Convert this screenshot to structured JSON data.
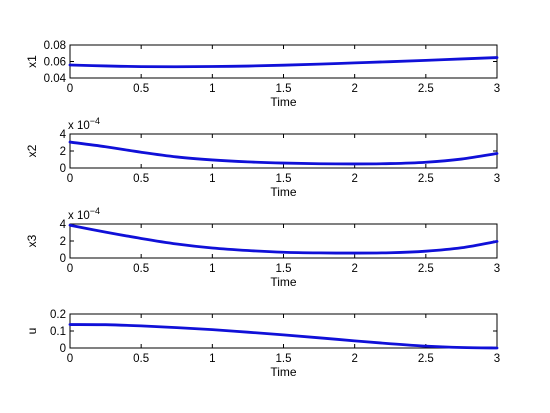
{
  "chart_data": [
    {
      "type": "line",
      "xlabel": "Time",
      "ylabel": "x1",
      "xlim": [
        0,
        3
      ],
      "ylim": [
        0.04,
        0.08
      ],
      "xticks": [
        "0",
        "0.5",
        "1",
        "1.5",
        "2",
        "2.5",
        "3"
      ],
      "yticks": [
        "0.04",
        "0.06",
        "0.08"
      ],
      "ytick_values": [
        0.04,
        0.06,
        0.08
      ],
      "multiplier": "",
      "color": "#1010d8",
      "x": [
        0,
        0.25,
        0.5,
        0.75,
        1,
        1.25,
        1.5,
        1.75,
        2,
        2.25,
        2.5,
        2.75,
        3
      ],
      "y": [
        0.0558,
        0.0546,
        0.0538,
        0.0536,
        0.0539,
        0.0545,
        0.0555,
        0.0568,
        0.0583,
        0.0598,
        0.0614,
        0.0631,
        0.0648
      ]
    },
    {
      "type": "line",
      "xlabel": "Time",
      "ylabel": "x2",
      "xlim": [
        0,
        3
      ],
      "ylim": [
        0,
        4
      ],
      "xticks": [
        "0",
        "0.5",
        "1",
        "1.5",
        "2",
        "2.5",
        "3"
      ],
      "yticks": [
        "0",
        "2",
        "4"
      ],
      "ytick_values": [
        0,
        2,
        4
      ],
      "multiplier": "x 10",
      "multiplier_exp": "−4",
      "color": "#1010d8",
      "x": [
        0,
        0.25,
        0.5,
        0.75,
        1,
        1.25,
        1.5,
        1.75,
        2,
        2.25,
        2.5,
        2.75,
        3
      ],
      "y": [
        3.05,
        2.5,
        1.85,
        1.3,
        0.95,
        0.72,
        0.58,
        0.5,
        0.48,
        0.52,
        0.68,
        1.05,
        1.7
      ]
    },
    {
      "type": "line",
      "xlabel": "Time",
      "ylabel": "x3",
      "xlim": [
        0,
        3
      ],
      "ylim": [
        0,
        4
      ],
      "xticks": [
        "0",
        "0.5",
        "1",
        "1.5",
        "2",
        "2.5",
        "3"
      ],
      "yticks": [
        "0",
        "2",
        "4"
      ],
      "ytick_values": [
        0,
        2,
        4
      ],
      "multiplier": "x 10",
      "multiplier_exp": "−4",
      "color": "#1010d8",
      "x": [
        0,
        0.25,
        0.5,
        0.75,
        1,
        1.25,
        1.5,
        1.75,
        2,
        2.25,
        2.5,
        2.75,
        3
      ],
      "y": [
        3.85,
        3.05,
        2.3,
        1.65,
        1.18,
        0.88,
        0.68,
        0.6,
        0.58,
        0.62,
        0.8,
        1.2,
        1.95
      ]
    },
    {
      "type": "line",
      "xlabel": "Time",
      "ylabel": "u",
      "xlim": [
        0,
        3
      ],
      "ylim": [
        0,
        0.2
      ],
      "xticks": [
        "0",
        "0.5",
        "1",
        "1.5",
        "2",
        "2.5",
        "3"
      ],
      "yticks": [
        "0",
        "0.1",
        "0.2"
      ],
      "ytick_values": [
        0,
        0.1,
        0.2
      ],
      "multiplier": "",
      "color": "#1010d8",
      "x": [
        0,
        0.25,
        0.5,
        0.75,
        1,
        1.25,
        1.5,
        1.75,
        2,
        2.25,
        2.5,
        2.75,
        3
      ],
      "y": [
        0.138,
        0.137,
        0.13,
        0.12,
        0.108,
        0.093,
        0.077,
        0.06,
        0.042,
        0.025,
        0.011,
        0.003,
        0.0
      ]
    }
  ]
}
